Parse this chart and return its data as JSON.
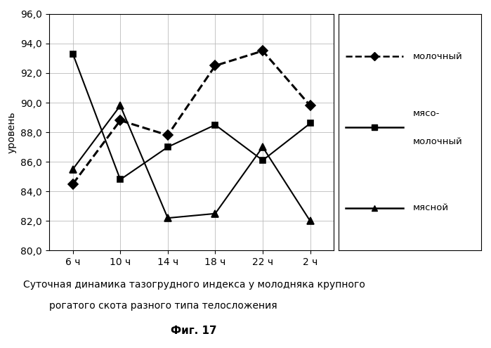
{
  "x_labels": [
    "6 ч",
    "10 ч",
    "14 ч",
    "18 ч",
    "22 ч",
    "2 ч"
  ],
  "x_positions": [
    0,
    1,
    2,
    3,
    4,
    5
  ],
  "series": [
    {
      "name": "молочный",
      "values": [
        84.5,
        88.8,
        87.8,
        92.5,
        93.5,
        89.8
      ],
      "color": "#000000",
      "linestyle": "--",
      "marker": "D",
      "markersize": 7,
      "linewidth": 2.2,
      "zorder": 3,
      "markerfacecolor": "#000000"
    },
    {
      "name": "мясо-\nмолочный",
      "values": [
        93.3,
        84.8,
        87.0,
        88.5,
        86.1,
        88.6
      ],
      "color": "#000000",
      "linestyle": "-",
      "marker": "s",
      "markersize": 6,
      "linewidth": 1.5,
      "zorder": 3,
      "markerfacecolor": "#000000"
    },
    {
      "name": "мясной",
      "values": [
        85.5,
        89.8,
        82.2,
        82.5,
        87.0,
        82.0
      ],
      "color": "#000000",
      "linestyle": "-",
      "marker": "^",
      "markersize": 7,
      "linewidth": 1.5,
      "zorder": 3,
      "markerfacecolor": "#000000"
    }
  ],
  "ylabel": "уровень",
  "ylim": [
    80.0,
    96.0
  ],
  "yticks": [
    80.0,
    82.0,
    84.0,
    86.0,
    88.0,
    90.0,
    92.0,
    94.0,
    96.0
  ],
  "caption_line1": "Суточная динамика тазогрудного индекса у молодняка крупного",
  "caption_line2": "рогатого скота разного типа телосложения",
  "caption_fig": "Фиг. 17",
  "background_color": "#ffffff",
  "legend_fontsize": 9.5,
  "axis_fontsize": 10,
  "tick_fontsize": 10
}
